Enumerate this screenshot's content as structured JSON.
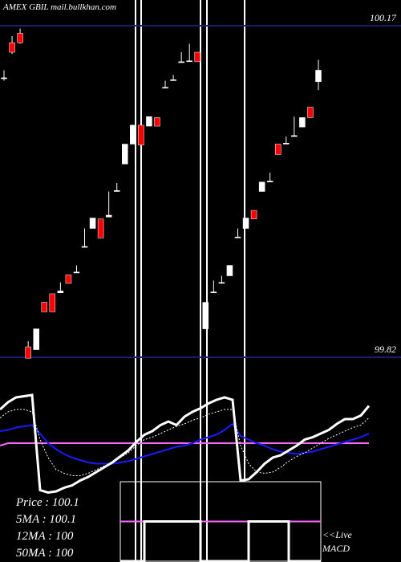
{
  "chart_data": {
    "type": "candlestick",
    "title": "AMEX GBIL mail.bullkhan.com",
    "ylim": [
      99.82,
      100.17
    ],
    "yticks": [
      99.82,
      100.17
    ],
    "up_color": "#ffffff",
    "down_color": "#ff0000",
    "ohlc": [
      [
        100.114,
        100.123,
        100.112,
        100.115
      ],
      [
        100.152,
        100.159,
        100.14,
        100.142
      ],
      [
        100.162,
        100.167,
        100.151,
        100.152
      ],
      [
        99.831,
        99.837,
        99.819,
        99.819
      ],
      [
        99.828,
        99.85,
        99.828,
        99.85
      ],
      [
        99.878,
        99.878,
        99.868,
        99.868
      ],
      [
        99.887,
        99.887,
        99.868,
        99.868
      ],
      [
        99.888,
        99.899,
        99.888,
        99.89
      ],
      [
        99.907,
        99.907,
        99.898,
        99.898
      ],
      [
        99.909,
        99.917,
        99.909,
        99.91
      ],
      [
        99.936,
        99.956,
        99.936,
        99.937
      ],
      [
        99.956,
        99.967,
        99.956,
        99.967
      ],
      [
        99.966,
        99.966,
        99.946,
        99.946
      ],
      [
        99.968,
        99.995,
        99.968,
        99.97
      ],
      [
        99.995,
        100.004,
        99.995,
        99.996
      ],
      [
        100.024,
        100.045,
        100.024,
        100.045
      ],
      [
        100.045,
        100.065,
        100.045,
        100.065
      ],
      [
        100.065,
        100.065,
        100.044,
        100.044
      ],
      [
        100.064,
        100.074,
        100.064,
        100.074
      ],
      [
        100.073,
        100.073,
        100.064,
        100.064
      ],
      [
        100.104,
        100.112,
        100.104,
        100.105
      ],
      [
        100.112,
        100.118,
        100.112,
        100.113
      ],
      [
        100.131,
        100.142,
        100.131,
        100.132
      ],
      [
        100.132,
        100.151,
        100.132,
        100.133
      ],
      [
        100.142,
        100.142,
        100.132,
        100.132
      ],
      [
        99.85,
        99.878,
        99.85,
        99.878
      ],
      [
        99.888,
        99.901,
        99.888,
        99.889
      ],
      [
        99.898,
        99.906,
        99.898,
        99.899
      ],
      [
        99.906,
        99.917,
        99.906,
        99.917
      ],
      [
        99.946,
        99.956,
        99.946,
        99.947
      ],
      [
        99.956,
        99.967,
        99.956,
        99.967
      ],
      [
        99.975,
        99.975,
        99.966,
        99.966
      ],
      [
        99.995,
        100.005,
        99.995,
        100.005
      ],
      [
        100.005,
        100.015,
        100.005,
        100.006
      ],
      [
        100.045,
        100.045,
        100.034,
        100.034
      ],
      [
        100.045,
        100.053,
        100.045,
        100.046
      ],
      [
        100.053,
        100.074,
        100.053,
        100.054
      ],
      [
        100.063,
        100.073,
        100.063,
        100.073
      ],
      [
        100.084,
        100.084,
        100.073,
        100.073
      ],
      [
        100.111,
        100.134,
        100.102,
        100.123
      ]
    ],
    "indicator": {
      "ylim": [
        0,
        100
      ],
      "series": [
        {
          "color": "#ff66ff",
          "style": "solid",
          "values": [
            50,
            52,
            52,
            52,
            52,
            52,
            52,
            52,
            52,
            52,
            52,
            52,
            52,
            52,
            52,
            52,
            52,
            52,
            52,
            52,
            52,
            52,
            52,
            52,
            52,
            52,
            52,
            52,
            52,
            52,
            52,
            52,
            52,
            52,
            52,
            52,
            52,
            52,
            52,
            52,
            52,
            52,
            52,
            52,
            52,
            52,
            52
          ]
        },
        {
          "color": "#1a1aff",
          "style": "solid",
          "values": [
            62,
            63,
            65,
            66,
            67,
            60,
            52,
            47,
            43,
            40,
            38,
            36,
            35,
            35,
            35,
            36,
            37,
            39,
            41,
            43,
            45,
            47,
            49,
            50,
            52,
            55,
            57,
            59,
            63,
            68,
            58,
            55,
            52,
            50,
            47,
            45,
            44,
            43,
            44,
            45,
            47,
            49,
            51,
            53,
            55,
            57,
            60
          ]
        },
        {
          "color": "#ffffff",
          "style": "dotted",
          "values": [
            73,
            78,
            80,
            80,
            78,
            55,
            40,
            30,
            27,
            25,
            25,
            27,
            30,
            33,
            36,
            40,
            44,
            50,
            55,
            57,
            60,
            63,
            66,
            68,
            71,
            73,
            76,
            78,
            80,
            80,
            50,
            35,
            28,
            27,
            28,
            32,
            37,
            41,
            44,
            48,
            52,
            56,
            59,
            62,
            65,
            67,
            73
          ]
        },
        {
          "color": "#ffffff",
          "style": "thick",
          "values": [
            80,
            86,
            90,
            91,
            92,
            13,
            11,
            12,
            15,
            17,
            21,
            24,
            28,
            32,
            36,
            41,
            46,
            53,
            59,
            62,
            67,
            70,
            67,
            74,
            78,
            81,
            85,
            88,
            90,
            88,
            21,
            22,
            28,
            35,
            40,
            42,
            46,
            50,
            55,
            57,
            60,
            63,
            68,
            72,
            72,
            75,
            83
          ]
        }
      ]
    },
    "macd": {
      "ylim": [
        -1,
        1
      ],
      "signal": 0,
      "values": [
        -1,
        -1,
        -1,
        0,
        0,
        0,
        0,
        0,
        0,
        0,
        -1,
        -1,
        -1,
        -1,
        -1,
        -1,
        0,
        0,
        0,
        0,
        0,
        -1,
        -1,
        -1,
        -1,
        -1
      ],
      "label": [
        "<<Live",
        "MACD"
      ]
    },
    "legend": [
      "Price : 100.1",
      "5MA : 100.1",
      "12MA : 100",
      "50MA : 100"
    ]
  }
}
